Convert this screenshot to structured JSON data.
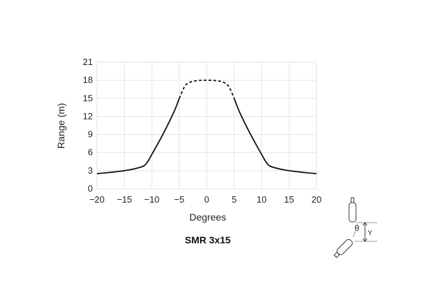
{
  "chart_data": {
    "type": "line",
    "title": "SMR 3x15",
    "xlabel": "Degrees",
    "ylabel": "Range (m)",
    "xlim": [
      -20,
      20
    ],
    "ylim": [
      0,
      21
    ],
    "xticks": [
      "−20",
      "−15",
      "−10",
      "−5",
      "0",
      "5",
      "10",
      "15",
      "20"
    ],
    "xtick_values": [
      -20,
      -15,
      -10,
      -5,
      0,
      5,
      10,
      15,
      20
    ],
    "yticks": [
      "0",
      "3",
      "6",
      "9",
      "12",
      "15",
      "18",
      "21"
    ],
    "ytick_values": [
      0,
      3,
      6,
      9,
      12,
      15,
      18,
      21
    ],
    "grid": true,
    "line_color": "#111111",
    "grid_color": "#e3e3e3",
    "series": [
      {
        "style": "solid",
        "x": [
          -20,
          -15,
          -12,
          -11,
          -10,
          -8,
          -6,
          -5
        ],
        "y": [
          2.5,
          3.0,
          3.6,
          4.2,
          5.7,
          9.0,
          12.7,
          15.0
        ]
      },
      {
        "style": "dashed",
        "x": [
          -5,
          -4,
          -3,
          -2,
          -1,
          0,
          1,
          2,
          3,
          4,
          5
        ],
        "y": [
          15.0,
          17.0,
          17.7,
          17.9,
          18.0,
          18.0,
          18.0,
          17.9,
          17.7,
          17.0,
          15.0
        ]
      },
      {
        "style": "solid",
        "x": [
          5,
          6,
          8,
          10,
          11,
          12,
          15,
          20
        ],
        "y": [
          15.0,
          12.7,
          9.0,
          5.7,
          4.2,
          3.6,
          3.0,
          2.5
        ]
      }
    ]
  },
  "diagram": {
    "angle_label": "θ",
    "distance_label": "Y"
  }
}
